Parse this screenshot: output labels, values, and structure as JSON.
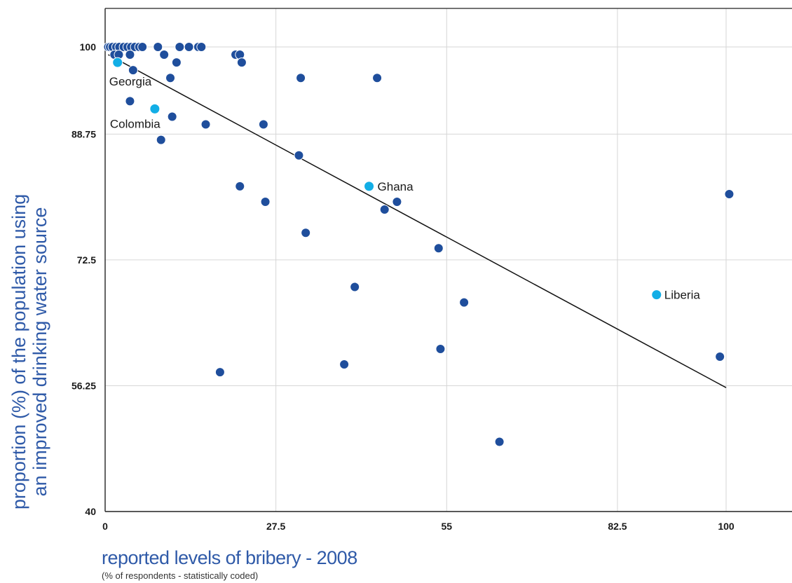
{
  "chart_data": {
    "type": "scatter",
    "title": "",
    "ylabel_lines": [
      "proportion (%) of the population using",
      "an improved drinking water source"
    ],
    "xlabel": "reported levels of bribery - 2008",
    "xlabel_note": "(% of respondents - statistically coded)",
    "xlim": [
      0,
      108
    ],
    "ylim": [
      40,
      105
    ],
    "x_ticks": [
      {
        "value": 0,
        "label": "0"
      },
      {
        "value": 27.5,
        "label": "27.5"
      },
      {
        "value": 55,
        "label": "55"
      },
      {
        "value": 82.5,
        "label": "82.5"
      },
      {
        "value": 100,
        "label": "100"
      }
    ],
    "y_ticks": [
      {
        "value": 40,
        "label": "40"
      },
      {
        "value": 56.25,
        "label": "56.25"
      },
      {
        "value": 72.5,
        "label": "72.5"
      },
      {
        "value": 88.75,
        "label": "88.75"
      },
      {
        "value": 100,
        "label": "100"
      }
    ],
    "grid": true,
    "trendline": {
      "x1": 0.5,
      "y1": 99,
      "x2": 100,
      "y2": 56
    },
    "colors": {
      "point": "#1f4e9c",
      "highlight": "#12aee6",
      "grid": "#d6d6d6",
      "trend": "#111111"
    },
    "points": [
      {
        "x": 0.5,
        "y": 100
      },
      {
        "x": 0.8,
        "y": 100
      },
      {
        "x": 1.2,
        "y": 100
      },
      {
        "x": 1.8,
        "y": 100
      },
      {
        "x": 2.3,
        "y": 100
      },
      {
        "x": 3.0,
        "y": 100
      },
      {
        "x": 3.6,
        "y": 100
      },
      {
        "x": 4.2,
        "y": 100
      },
      {
        "x": 4.8,
        "y": 100
      },
      {
        "x": 5.5,
        "y": 100
      },
      {
        "x": 6.0,
        "y": 100
      },
      {
        "x": 8.5,
        "y": 100
      },
      {
        "x": 12.0,
        "y": 100
      },
      {
        "x": 13.5,
        "y": 100
      },
      {
        "x": 15.0,
        "y": 100
      },
      {
        "x": 15.5,
        "y": 100
      },
      {
        "x": 1.5,
        "y": 99
      },
      {
        "x": 2.2,
        "y": 99
      },
      {
        "x": 4.0,
        "y": 99
      },
      {
        "x": 9.5,
        "y": 99
      },
      {
        "x": 21.0,
        "y": 99
      },
      {
        "x": 21.7,
        "y": 99
      },
      {
        "x": 11.5,
        "y": 98
      },
      {
        "x": 22.0,
        "y": 98
      },
      {
        "x": 4.5,
        "y": 97
      },
      {
        "x": 10.5,
        "y": 96
      },
      {
        "x": 31.5,
        "y": 96
      },
      {
        "x": 43.8,
        "y": 96
      },
      {
        "x": 4.0,
        "y": 93
      },
      {
        "x": 10.8,
        "y": 91
      },
      {
        "x": 16.2,
        "y": 90
      },
      {
        "x": 25.5,
        "y": 90
      },
      {
        "x": 9.0,
        "y": 88
      },
      {
        "x": 31.2,
        "y": 86
      },
      {
        "x": 21.7,
        "y": 82
      },
      {
        "x": 100.5,
        "y": 81
      },
      {
        "x": 25.8,
        "y": 80
      },
      {
        "x": 47.0,
        "y": 80
      },
      {
        "x": 45.0,
        "y": 79
      },
      {
        "x": 32.3,
        "y": 76
      },
      {
        "x": 53.7,
        "y": 74
      },
      {
        "x": 40.2,
        "y": 69
      },
      {
        "x": 57.8,
        "y": 67
      },
      {
        "x": 54.0,
        "y": 61
      },
      {
        "x": 99.0,
        "y": 60
      },
      {
        "x": 38.5,
        "y": 59
      },
      {
        "x": 18.5,
        "y": 58
      },
      {
        "x": 63.5,
        "y": 49
      }
    ],
    "highlighted": [
      {
        "name": "Georgia",
        "x": 2.0,
        "y": 98
      },
      {
        "name": "Colombia",
        "x": 8.0,
        "y": 92
      },
      {
        "name": "Ghana",
        "x": 42.5,
        "y": 82
      },
      {
        "name": "Liberia",
        "x": 88.8,
        "y": 68
      }
    ]
  }
}
